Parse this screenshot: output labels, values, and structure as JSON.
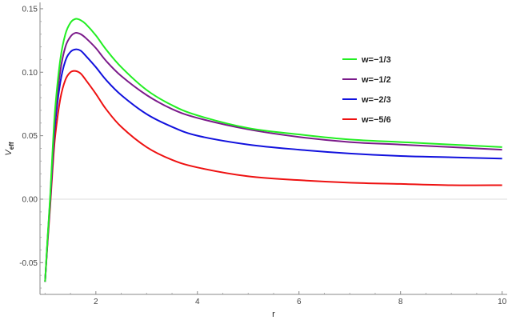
{
  "chart_data": {
    "type": "line",
    "xlabel": "r",
    "ylabel_main": "V",
    "ylabel_sub": "eff",
    "xlim": [
      0.9,
      10.1
    ],
    "ylim": [
      -0.075,
      0.155
    ],
    "x_ticks": [
      2,
      4,
      6,
      8,
      10
    ],
    "x_tick_labels": [
      "2",
      "4",
      "6",
      "8",
      "10"
    ],
    "y_ticks": [
      -0.05,
      0,
      0.05,
      0.1,
      0.15
    ],
    "y_tick_labels": [
      "-0.05",
      "0.00",
      "0.05",
      "0.10",
      "0.15"
    ],
    "zero_line": true,
    "legend_position": "right",
    "series": [
      {
        "name": "w=−1/3",
        "color": "#22ee22",
        "x": [
          1.0,
          1.05,
          1.1,
          1.15,
          1.2,
          1.3,
          1.4,
          1.5,
          1.6,
          1.7,
          1.8,
          2.0,
          2.2,
          2.5,
          3.0,
          3.5,
          4.0,
          5.0,
          6.0,
          7.0,
          8.0,
          9.0,
          10.0
        ],
        "y": [
          -0.065,
          -0.03,
          0.002,
          0.04,
          0.072,
          0.11,
          0.13,
          0.139,
          0.142,
          0.141,
          0.138,
          0.129,
          0.118,
          0.104,
          0.086,
          0.074,
          0.066,
          0.056,
          0.051,
          0.047,
          0.045,
          0.043,
          0.041
        ]
      },
      {
        "name": "w=−1/2",
        "color": "#7b1a8a",
        "x": [
          1.0,
          1.05,
          1.1,
          1.15,
          1.2,
          1.3,
          1.4,
          1.5,
          1.6,
          1.7,
          1.8,
          2.0,
          2.2,
          2.5,
          3.0,
          3.5,
          4.0,
          5.0,
          6.0,
          7.0,
          8.0,
          9.0,
          10.0
        ],
        "y": [
          -0.065,
          -0.031,
          0.0,
          0.036,
          0.066,
          0.101,
          0.12,
          0.128,
          0.131,
          0.13,
          0.127,
          0.119,
          0.109,
          0.097,
          0.082,
          0.071,
          0.064,
          0.055,
          0.049,
          0.045,
          0.043,
          0.041,
          0.039
        ]
      },
      {
        "name": "w=−2/3",
        "color": "#1111dd",
        "x": [
          1.0,
          1.05,
          1.1,
          1.15,
          1.2,
          1.3,
          1.4,
          1.5,
          1.6,
          1.7,
          1.8,
          2.0,
          2.2,
          2.5,
          3.0,
          3.5,
          4.0,
          5.0,
          6.0,
          7.0,
          8.0,
          9.0,
          10.0
        ],
        "y": [
          -0.065,
          -0.032,
          -0.002,
          0.032,
          0.06,
          0.092,
          0.109,
          0.116,
          0.118,
          0.117,
          0.113,
          0.104,
          0.094,
          0.082,
          0.067,
          0.057,
          0.05,
          0.043,
          0.039,
          0.036,
          0.034,
          0.033,
          0.032
        ]
      },
      {
        "name": "w=−5/6",
        "color": "#ee1111",
        "x": [
          1.0,
          1.05,
          1.1,
          1.15,
          1.2,
          1.3,
          1.4,
          1.5,
          1.6,
          1.7,
          1.8,
          2.0,
          2.2,
          2.5,
          3.0,
          3.5,
          4.0,
          5.0,
          6.0,
          7.0,
          8.0,
          9.0,
          10.0
        ],
        "y": [
          -0.065,
          -0.034,
          -0.006,
          0.025,
          0.05,
          0.079,
          0.094,
          0.1,
          0.101,
          0.099,
          0.094,
          0.083,
          0.071,
          0.057,
          0.041,
          0.031,
          0.025,
          0.018,
          0.015,
          0.013,
          0.012,
          0.011,
          0.011
        ]
      }
    ]
  }
}
